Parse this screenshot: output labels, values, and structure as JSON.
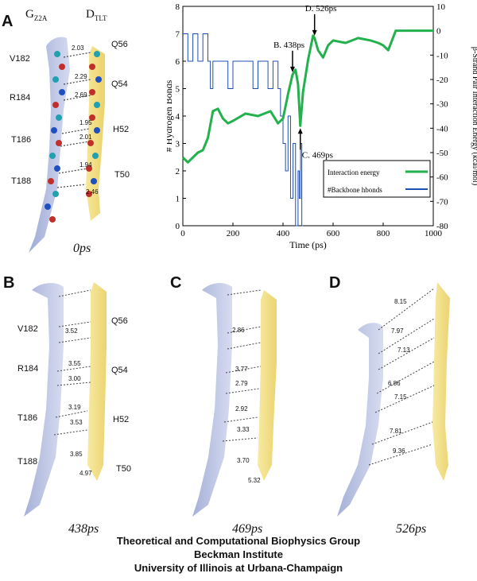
{
  "panels": {
    "a": {
      "letter": "A",
      "time": "0ps",
      "strand_left": {
        "name": "G",
        "sub": "Z2A"
      },
      "strand_right": {
        "name": "D",
        "sub": "TLT"
      },
      "residues_left": [
        "V182",
        "R184",
        "T186",
        "T188"
      ],
      "residues_right": [
        "Q56",
        "Q54",
        "H52",
        "T50"
      ],
      "distances": [
        "2.03",
        "2.29",
        "2.69",
        "1.95",
        "2.01",
        "1.94",
        "2.46"
      ]
    },
    "b": {
      "letter": "B",
      "time": "438ps",
      "residues_left": [
        "V182",
        "R184",
        "T186",
        "T188"
      ],
      "residues_right": [
        "Q56",
        "Q54",
        "H52",
        "T50"
      ],
      "distances": [
        "3.52",
        "3.55",
        "3.00",
        "3.19",
        "3.53",
        "3.85",
        "4.97"
      ]
    },
    "c": {
      "letter": "C",
      "time": "469ps",
      "distances": [
        "2.86",
        "3.77",
        "2.79",
        "2.92",
        "3.33",
        "3.70",
        "5.32"
      ]
    },
    "d": {
      "letter": "D",
      "time": "526ps",
      "distances": [
        "8.15",
        "7.97",
        "7.13",
        "6.86",
        "7.15",
        "7.81",
        "9.36"
      ]
    }
  },
  "chart_data": {
    "type": "line",
    "xlabel": "Time (ps)",
    "ylabel_left": "# Hydrogen Bonds",
    "ylabel_right": "β-Strand Pair Interaction Energy (kcal/mol)",
    "xlim": [
      0,
      1000
    ],
    "ylim_left": [
      0,
      8
    ],
    "ylim_right": [
      -80,
      10
    ],
    "xticks": [
      0,
      200,
      400,
      600,
      800,
      1000
    ],
    "yticks_left": [
      0,
      1,
      2,
      3,
      4,
      5,
      6,
      7,
      8
    ],
    "yticks_right": [
      10,
      0,
      -10,
      -20,
      -30,
      -40,
      -50,
      -60,
      -70,
      -80
    ],
    "annotations": [
      {
        "label": "B. 438ps",
        "x": 438
      },
      {
        "label": "C. 469ps",
        "x": 469
      },
      {
        "label": "D. 526ps",
        "x": 526
      }
    ],
    "series": [
      {
        "name": "Interaction energy",
        "color": "#22b14c",
        "axis": "right",
        "x": [
          0,
          20,
          40,
          60,
          80,
          100,
          120,
          140,
          160,
          180,
          200,
          250,
          300,
          350,
          380,
          400,
          420,
          438,
          450,
          460,
          469,
          480,
          500,
          520,
          526,
          540,
          560,
          580,
          600,
          650,
          700,
          750,
          780,
          800,
          820,
          850,
          900,
          1000
        ],
        "y": [
          -52,
          -54,
          -52,
          -50,
          -49,
          -44,
          -33,
          -32,
          -36,
          -38,
          -37,
          -34,
          -35,
          -33,
          -38,
          -36,
          -26,
          -18,
          -16,
          -22,
          -39,
          -25,
          -12,
          -2,
          -3,
          -8,
          -11,
          -6,
          -4,
          -5,
          -3,
          -4,
          -5,
          -6,
          -8,
          0,
          0,
          0
        ]
      },
      {
        "name": "#Backbone hbonds",
        "color": "#1f4fb5",
        "axis": "left",
        "x": [
          0,
          20,
          40,
          60,
          80,
          100,
          110,
          120,
          140,
          160,
          180,
          200,
          220,
          250,
          280,
          300,
          320,
          340,
          360,
          380,
          390,
          400,
          410,
          420,
          430,
          440,
          450,
          460,
          465,
          470,
          475,
          480
        ],
        "y": [
          7,
          6,
          7,
          6,
          7,
          6,
          5,
          6,
          6,
          6,
          5,
          6,
          6,
          6,
          5,
          6,
          6,
          5,
          6,
          5,
          4,
          3,
          2,
          4,
          1,
          3,
          0,
          2,
          1,
          3,
          0,
          0
        ]
      }
    ]
  },
  "footer": {
    "line1": "Theoretical and Computational Biophysics Group",
    "line2": "Beckman Institute",
    "line3": "University of Illinois at Urbana-Champaign"
  }
}
